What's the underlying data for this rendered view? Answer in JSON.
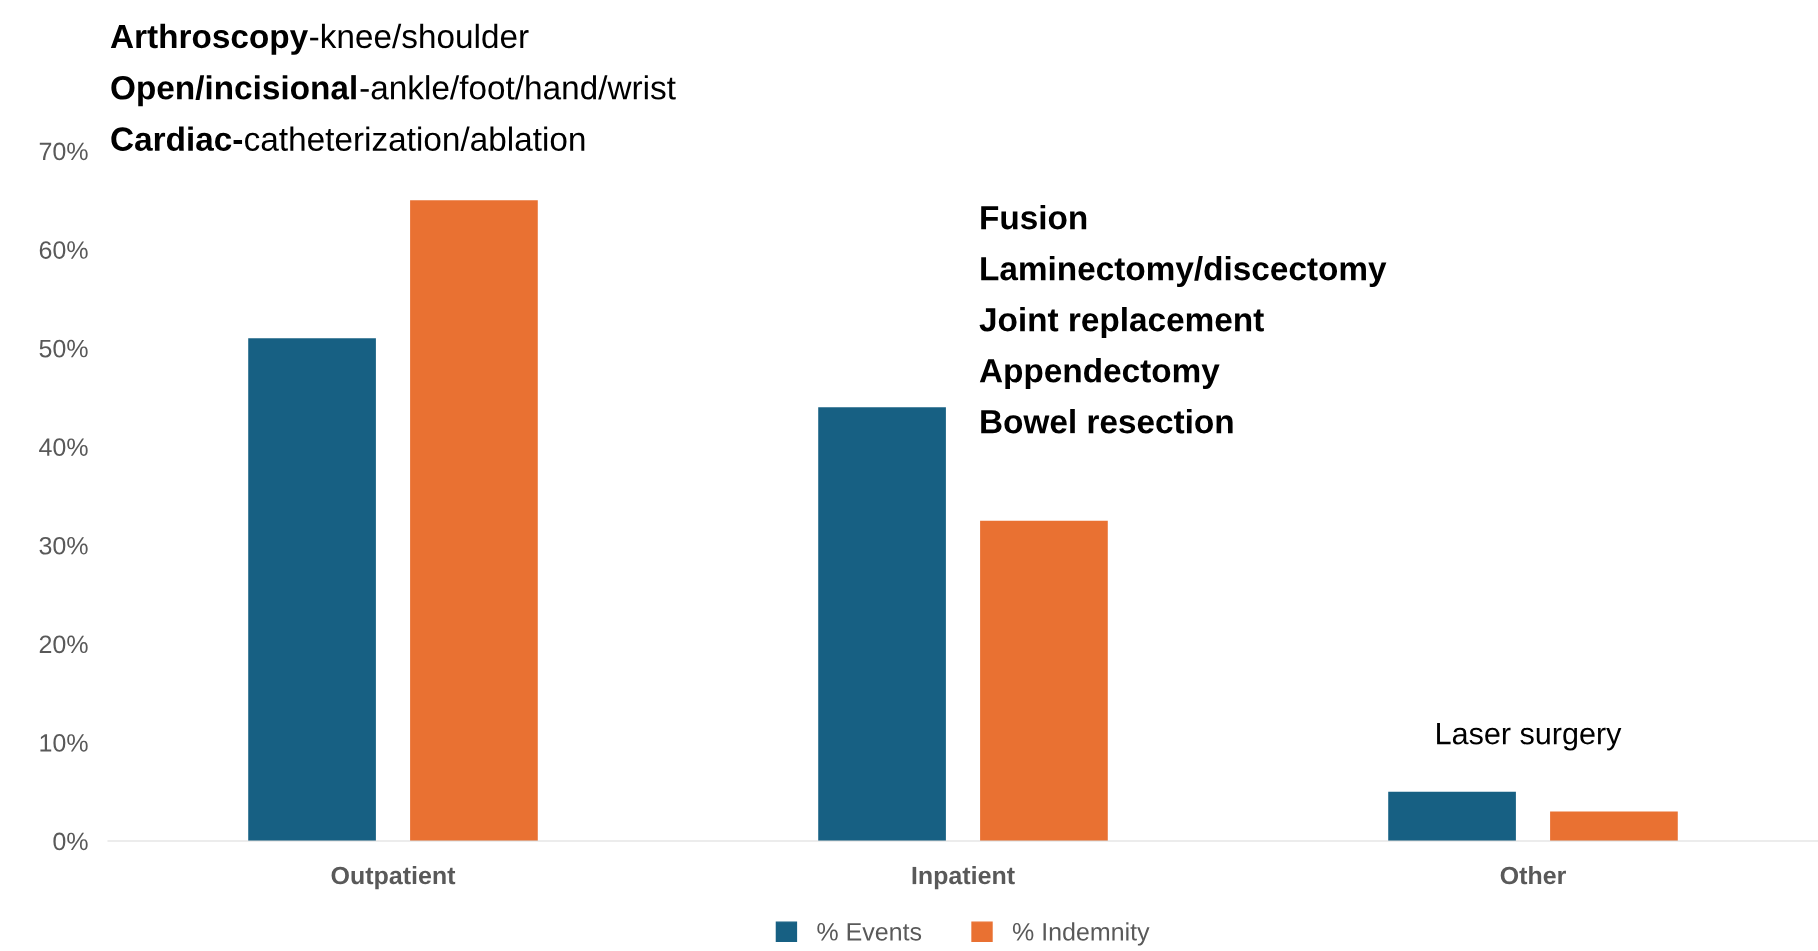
{
  "chart_data": {
    "type": "bar",
    "categories": [
      "Outpatient",
      "Inpatient",
      "Other"
    ],
    "series": [
      {
        "name": "% Events",
        "color": "#176083",
        "values": [
          51,
          44,
          5
        ]
      },
      {
        "name": "% Indemnity",
        "color": "#e97132",
        "values": [
          65,
          32.5,
          3
        ]
      }
    ],
    "ylim": [
      0,
      70
    ],
    "yticks": [
      {
        "value": 0,
        "label": "0%"
      },
      {
        "value": 10,
        "label": "10%"
      },
      {
        "value": 20,
        "label": "20%"
      },
      {
        "value": 30,
        "label": "30%"
      },
      {
        "value": 40,
        "label": "40%"
      },
      {
        "value": 50,
        "label": "50%"
      },
      {
        "value": 60,
        "label": "60%"
      },
      {
        "value": 70,
        "label": "70%"
      }
    ],
    "grid": false,
    "legend": "bottom",
    "annotations": [
      "Arthroscopy-knee/shoulder",
      "Open/incisional-ankle/foot/hand/wrist",
      "Cardiac-catheterization/ablation",
      "Fusion",
      "Laminectomy/discectomy",
      "Joint replacement",
      "Appendectomy",
      "Bowel resection",
      "Laser surgery"
    ]
  }
}
